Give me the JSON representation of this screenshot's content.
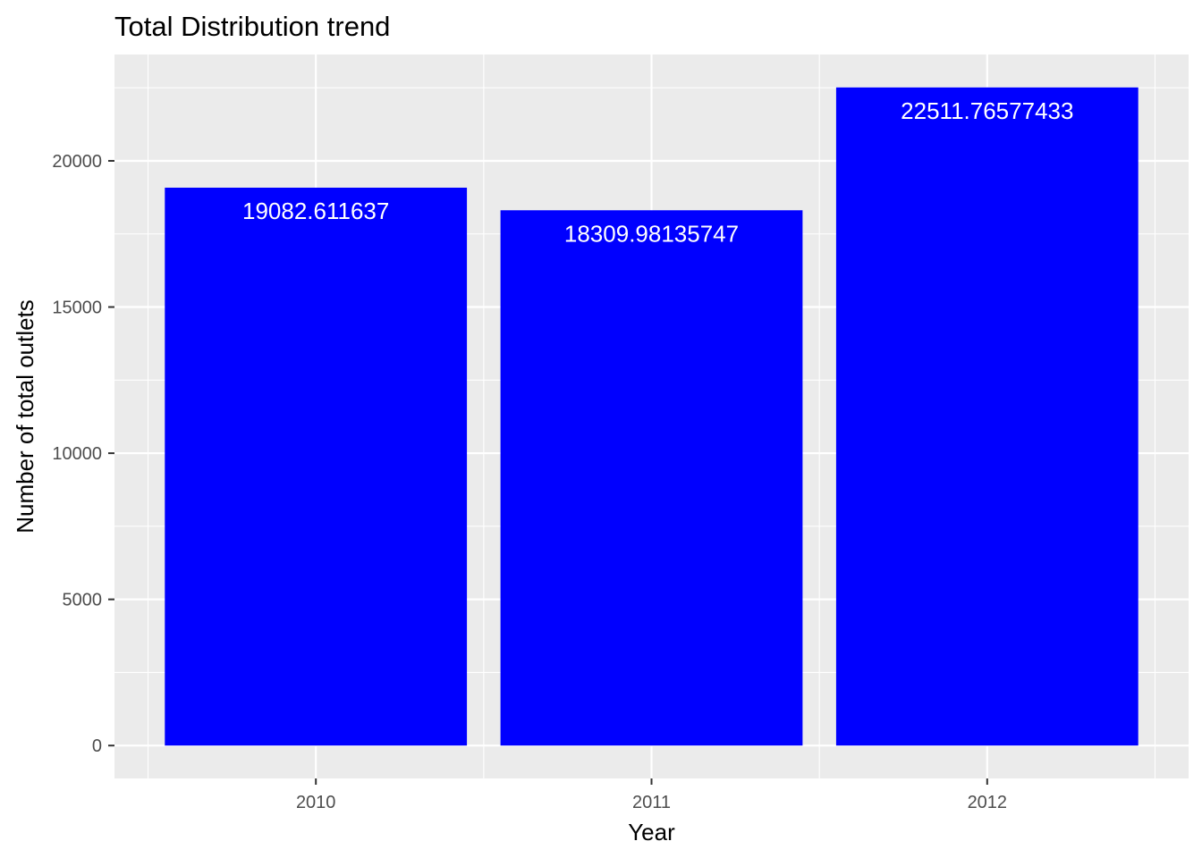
{
  "chart_data": {
    "type": "bar",
    "title": "Total Distribution trend",
    "xlabel": "Year",
    "ylabel": "Number of total outlets",
    "categories": [
      "2010",
      "2011",
      "2012"
    ],
    "values": [
      19082.611637,
      18309.98135747,
      22511.76577433
    ],
    "value_labels": [
      "19082.611637",
      "18309.98135747",
      "22511.76577433"
    ],
    "yticks": [
      0,
      5000,
      10000,
      15000,
      20000
    ],
    "ytick_labels": [
      "0",
      "5000",
      "10000",
      "15000",
      "20000"
    ],
    "ylim": [
      -1125.6,
      23637.4
    ],
    "grid": true,
    "legend": "none",
    "colors": {
      "bar": "#0000ff",
      "panel": "#ebebeb",
      "grid": "#ffffff",
      "bar_label": "#ffffff"
    }
  }
}
